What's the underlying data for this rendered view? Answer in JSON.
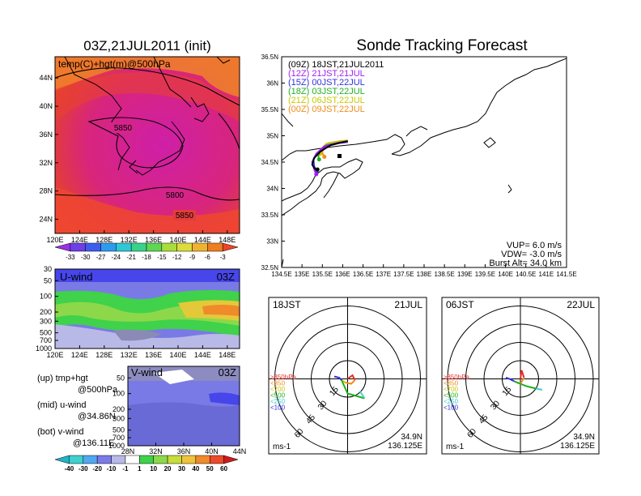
{
  "main_title": "Sonde Tracking Forecast",
  "map": {
    "title": "03Z,21JUL2011 (init)",
    "label": "temp(C)+hgt(m)@500hPa",
    "x_ticks": [
      "120E",
      "124E",
      "128E",
      "132E",
      "136E",
      "140E",
      "144E",
      "148E"
    ],
    "y_ticks": [
      "24N",
      "28N",
      "32N",
      "36N",
      "40N",
      "44N"
    ],
    "contour_labels": [
      "5850",
      "5800",
      "5850"
    ],
    "colorbar_ticks": [
      "-33",
      "-30",
      "-27",
      "-24",
      "-21",
      "-18",
      "-15",
      "-12",
      "-9",
      "-6",
      "-3"
    ],
    "colorbar_colors": [
      "#9a2fe6",
      "#6e3ee8",
      "#3f5cf0",
      "#2d9bf2",
      "#2fc8d6",
      "#38d38a",
      "#5dd850",
      "#a9de3a",
      "#dddc3a",
      "#f0b32f",
      "#f07d1f",
      "#ee4428"
    ]
  },
  "u_wind": {
    "label": "U-wind",
    "time": "03Z",
    "y_ticks": [
      "30",
      "50",
      "100",
      "200",
      "300",
      "500",
      "700",
      "1000"
    ],
    "x_ticks": [
      "120E",
      "124E",
      "128E",
      "132E",
      "136E",
      "140E",
      "144E",
      "148E"
    ]
  },
  "v_wind": {
    "label": "V-wind",
    "time": "03Z",
    "y_ticks": [
      "50",
      "100",
      "200",
      "300",
      "500",
      "700",
      "1000"
    ],
    "x_ticks": [
      "28N",
      "32N",
      "36N",
      "40N",
      "44N"
    ],
    "colorbar_ticks": [
      "-40",
      "-30",
      "-20",
      "-10",
      "-1",
      "1",
      "10",
      "20",
      "30",
      "40",
      "50",
      "60"
    ],
    "colorbar_colors": [
      "#1fb3c9",
      "#3fd0d0",
      "#4fa8f0",
      "#7a7ae8",
      "#b9b9e8",
      "#ffffff",
      "#3fd24a",
      "#8cd84a",
      "#c8dc3a",
      "#efc43a",
      "#f08a2a",
      "#ec4a2a",
      "#d01a1a"
    ]
  },
  "legend_notes": [
    {
      "title": "(up)  tmp+hgt",
      "sub": "@500hPa"
    },
    {
      "title": "(mid)  u-wind",
      "sub": "@34.86N"
    },
    {
      "title": "(bot)  v-wind",
      "sub": "@136.11E"
    }
  ],
  "track": {
    "runs": [
      {
        "label": "(09Z)  18JST,21JUL2011",
        "color": "#000000"
      },
      {
        "label": "(12Z)  21JST,21JUL",
        "color": "#a020f0"
      },
      {
        "label": "(15Z)  00JST,22JUL",
        "color": "#3030e0"
      },
      {
        "label": "(18Z)  03JST,22JUL",
        "color": "#20b020"
      },
      {
        "label": "(21Z)  06JST,22JUL",
        "color": "#c8c800"
      },
      {
        "label": "(00Z)  09JST,22JUL",
        "color": "#f08c1e"
      }
    ],
    "x_ticks": [
      "134.5E",
      "135E",
      "135.5E",
      "136E",
      "136.5E",
      "137E",
      "137.5E",
      "138E",
      "138.5E",
      "139E",
      "139.5E",
      "140E",
      "140.5E",
      "141E",
      "141.5E"
    ],
    "y_ticks": [
      "32.5N",
      "33N",
      "33.5N",
      "34N",
      "34.5N",
      "35N",
      "35.5N",
      "36N",
      "36.5N"
    ],
    "params": [
      "VUP=  6.0  m/s",
      "VDW=  -3.0  m/s",
      "Burst Alt=  34.0  km"
    ]
  },
  "hodographs": [
    {
      "time": "18JST",
      "date": "21JUL",
      "rings": [
        "15",
        "30",
        "45",
        "60"
      ],
      "levels": [
        "≥850hPa",
        "<850",
        "<700",
        "<500",
        "<250",
        "<100"
      ],
      "unit": "ms-1",
      "lat": "34.9N",
      "lon": "136.125E"
    },
    {
      "time": "06JST",
      "date": "22JUL",
      "rings": [
        "15",
        "30",
        "45",
        "60"
      ],
      "levels": [
        "≥850hPa",
        "<850",
        "<700",
        "<500",
        "<250",
        "<100"
      ],
      "unit": "ms-1",
      "lat": "34.9N",
      "lon": "136.125E"
    }
  ],
  "chart_data": [
    {
      "type": "heatmap",
      "title": "03Z,21JUL2011 (init)",
      "label": "temp(C)+hgt(m)@500hPa",
      "xlim": [
        120,
        150
      ],
      "ylim": [
        22,
        47
      ],
      "contours": [
        5850,
        5800,
        5850
      ],
      "colorbar": [
        -33,
        -30,
        -27,
        -24,
        -21,
        -18,
        -15,
        -12,
        -9,
        -6,
        -3
      ]
    },
    {
      "type": "heatmap",
      "title": "U-wind",
      "time": "03Z",
      "ylabel_levels_hPa": [
        30,
        50,
        100,
        200,
        300,
        500,
        700,
        1000
      ],
      "xlim": [
        120,
        150
      ]
    },
    {
      "type": "heatmap",
      "title": "V-wind",
      "time": "03Z",
      "ylabel_levels_hPa": [
        50,
        100,
        200,
        300,
        500,
        700,
        1000
      ],
      "xlim": [
        28,
        44
      ],
      "colorbar": [
        -40,
        -30,
        -20,
        -10,
        -1,
        1,
        10,
        20,
        30,
        40,
        50,
        60
      ]
    },
    {
      "type": "line",
      "title": "Sonde Tracking Forecast",
      "xlim": [
        134.5,
        141.5
      ],
      "ylim": [
        32.5,
        36.5
      ],
      "launch": [
        136.125,
        34.9
      ],
      "series": [
        {
          "name": "(09Z)  18JST,21JUL2011",
          "color": "#000000",
          "x": [
            136.125,
            135.95,
            135.7,
            135.45,
            135.3,
            135.25,
            135.32,
            135.38
          ],
          "y": [
            34.9,
            34.87,
            34.82,
            34.7,
            34.58,
            34.45,
            34.37,
            34.36
          ]
        },
        {
          "name": "(12Z)  21JST,21JUL",
          "color": "#a020f0",
          "x": [
            136.125,
            135.9,
            135.55,
            135.35,
            135.25,
            135.3,
            135.35
          ],
          "y": [
            34.89,
            34.87,
            34.8,
            34.66,
            34.5,
            34.36,
            34.27
          ]
        },
        {
          "name": "(15Z)  00JST,22JUL",
          "color": "#3030e0",
          "x": [
            136.125,
            135.9,
            135.6,
            135.4,
            135.28,
            135.3,
            135.36
          ],
          "y": [
            34.88,
            34.86,
            34.8,
            34.68,
            34.55,
            34.42,
            34.33
          ]
        },
        {
          "name": "(18Z)  03JST,22JUL",
          "color": "#20b020",
          "x": [
            136.125,
            135.9,
            135.6,
            135.45,
            135.4,
            135.42
          ],
          "y": [
            34.88,
            34.87,
            34.82,
            34.72,
            34.62,
            34.55
          ]
        },
        {
          "name": "(21Z)  06JST,22JUL",
          "color": "#c8c800",
          "x": [
            136.125,
            135.9,
            135.6,
            135.48,
            135.45
          ],
          "y": [
            34.9,
            34.89,
            34.85,
            34.76,
            34.66
          ]
        },
        {
          "name": "(00Z)  09JST,22JUL",
          "color": "#f08c1e",
          "x": [
            136.125,
            135.95,
            135.65,
            135.52,
            135.5,
            135.55
          ],
          "y": [
            34.91,
            34.9,
            34.86,
            34.77,
            34.67,
            34.6
          ]
        }
      ],
      "notes": [
        "VUP= 6.0 m/s",
        "VDW= -3.0 m/s",
        "Burst Alt= 34.0 km"
      ]
    }
  ]
}
